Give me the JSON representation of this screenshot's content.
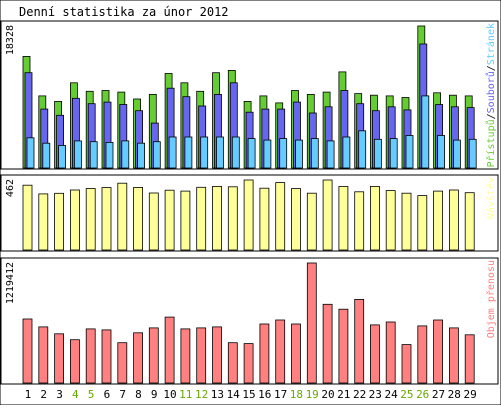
{
  "title": "Denní statistika za únor 2012",
  "chart_data": [
    {
      "type": "bar",
      "panel": "access",
      "ylabel_max": "18328",
      "ymax": 18328,
      "legend": [
        {
          "label": "Přístupů",
          "color": "#66cc33"
        },
        {
          "label": "Souborů",
          "color": "#6666ee"
        },
        {
          "label": "Stránek",
          "color": "#66ccff"
        }
      ],
      "series": [
        {
          "name": "Přístupů",
          "color": "#66cc33",
          "values": [
            14400,
            9300,
            8600,
            11000,
            9900,
            10000,
            9800,
            8900,
            9500,
            12200,
            11000,
            9900,
            12300,
            12600,
            8600,
            9300,
            8400,
            10000,
            9500,
            9800,
            12400,
            9600,
            9400,
            9300,
            9100,
            18328,
            9700,
            9400,
            9300
          ]
        },
        {
          "name": "Souborů",
          "color": "#6666ee",
          "values": [
            12300,
            7600,
            6800,
            9000,
            8300,
            8500,
            8200,
            7400,
            5800,
            10300,
            9200,
            8000,
            9500,
            11000,
            7200,
            7600,
            7600,
            8500,
            7100,
            7900,
            10000,
            8300,
            7400,
            7900,
            7500,
            16000,
            8200,
            7900,
            7800
          ]
        },
        {
          "name": "Stránek",
          "color": "#66ccff",
          "values": [
            3900,
            3200,
            2900,
            3500,
            3400,
            3300,
            3500,
            3200,
            3400,
            4000,
            4000,
            4000,
            4000,
            4000,
            3800,
            3600,
            3800,
            3600,
            3800,
            3500,
            4000,
            4800,
            3700,
            3800,
            4200,
            9300,
            4200,
            3600,
            3700
          ]
        }
      ]
    },
    {
      "type": "bar",
      "panel": "visitors",
      "ylabel_max": "462",
      "ymax": 462,
      "legend": [
        {
          "label": "Návštěv",
          "color": "#ffff99"
        }
      ],
      "series": [
        {
          "name": "Návštěv",
          "color": "#ffff99",
          "values": [
            428,
            370,
            374,
            396,
            406,
            412,
            441,
            413,
            376,
            395,
            389,
            414,
            420,
            417,
            462,
            408,
            445,
            405,
            375,
            462,
            419,
            384,
            420,
            392,
            375,
            359,
            389,
            396,
            378
          ]
        }
      ]
    },
    {
      "type": "bar",
      "panel": "kbytes",
      "ylabel_max": "1219412",
      "ymax": 1219412,
      "legend": [
        {
          "label": "Objem přenosu",
          "color": "#ff8080"
        }
      ],
      "series": [
        {
          "name": "Objem přenosu",
          "color": "#ff8080",
          "values": [
            650000,
            570000,
            500000,
            440000,
            550000,
            540000,
            410000,
            510000,
            560000,
            670000,
            550000,
            560000,
            570000,
            410000,
            400000,
            600000,
            640000,
            600000,
            1219412,
            800000,
            750000,
            850000,
            590000,
            620000,
            390000,
            580000,
            640000,
            560000,
            490000
          ]
        }
      ]
    }
  ],
  "days": [
    {
      "label": "1",
      "weekend": false
    },
    {
      "label": "2",
      "weekend": false
    },
    {
      "label": "3",
      "weekend": false
    },
    {
      "label": "4",
      "weekend": true
    },
    {
      "label": "5",
      "weekend": true
    },
    {
      "label": "6",
      "weekend": false
    },
    {
      "label": "7",
      "weekend": false
    },
    {
      "label": "8",
      "weekend": false
    },
    {
      "label": "9",
      "weekend": false
    },
    {
      "label": "10",
      "weekend": false
    },
    {
      "label": "11",
      "weekend": true
    },
    {
      "label": "12",
      "weekend": true
    },
    {
      "label": "13",
      "weekend": false
    },
    {
      "label": "14",
      "weekend": false
    },
    {
      "label": "15",
      "weekend": false
    },
    {
      "label": "16",
      "weekend": false
    },
    {
      "label": "17",
      "weekend": false
    },
    {
      "label": "18",
      "weekend": true
    },
    {
      "label": "19",
      "weekend": true
    },
    {
      "label": "20",
      "weekend": false
    },
    {
      "label": "21",
      "weekend": false
    },
    {
      "label": "22",
      "weekend": false
    },
    {
      "label": "23",
      "weekend": false
    },
    {
      "label": "24",
      "weekend": false
    },
    {
      "label": "25",
      "weekend": true
    },
    {
      "label": "26",
      "weekend": true
    },
    {
      "label": "27",
      "weekend": false
    },
    {
      "label": "28",
      "weekend": false
    },
    {
      "label": "29",
      "weekend": false
    }
  ],
  "colors": {
    "background": "#ffffff",
    "panel_border": "#000000",
    "weekday_label": "#000000",
    "weekend_label": "#66aa00",
    "bar_outline": "#000000"
  }
}
